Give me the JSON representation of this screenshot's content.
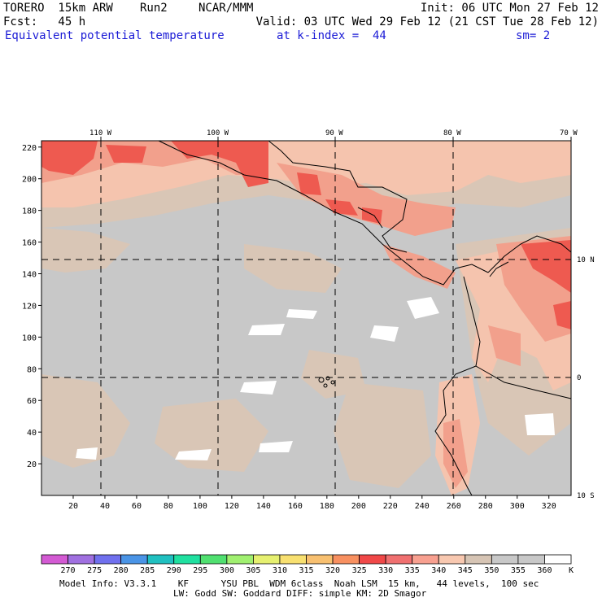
{
  "header": {
    "model": "TORERO  15km ARW",
    "run": "Run2",
    "org": "NCAR/MMM",
    "init": "Init: 06 UTC Mon 27 Feb 12",
    "fcst": "Fcst:   45 h",
    "valid": "Valid: 03 UTC Wed 29 Feb 12 (21 CST Tue 28 Feb 12)",
    "field": "Equivalent potential temperature",
    "level": "at k-index =  44",
    "smooth": "sm= 2"
  },
  "map": {
    "top_labels": [
      "110 W",
      "100 W",
      "90 W",
      "80 W",
      "70 W"
    ],
    "right_labels": [
      "10 N",
      "0",
      "10 S"
    ],
    "y_ticks": [
      "220",
      "200",
      "180",
      "160",
      "140",
      "120",
      "100",
      "80",
      "60",
      "40",
      "20"
    ],
    "x_ticks": [
      "20",
      "40",
      "60",
      "80",
      "100",
      "120",
      "140",
      "160",
      "180",
      "200",
      "220",
      "240",
      "260",
      "280",
      "300",
      "320"
    ],
    "grid": true
  },
  "legend": {
    "unit": "K",
    "labels": [
      "270",
      "275",
      "280",
      "285",
      "290",
      "295",
      "300",
      "305",
      "310",
      "315",
      "320",
      "325",
      "330",
      "335",
      "340",
      "345",
      "350",
      "355",
      "360"
    ],
    "colors": [
      "#d35ad3",
      "#a070e0",
      "#7070ee",
      "#4a94e6",
      "#20c0c0",
      "#20e0a0",
      "#50e070",
      "#a0f070",
      "#e6f070",
      "#f8e070",
      "#f8c070",
      "#f89060",
      "#f04848",
      "#f07070",
      "#f8a090",
      "#f8c8b0",
      "#d6c4b4",
      "#c8c8c8",
      "#c8c8c8",
      "#ffffff"
    ]
  },
  "footer": {
    "line1": "Model Info: V3.3.1    KF      YSU PBL  WDM 6class  Noah LSM  15 km,   44 levels,  100 sec",
    "line2": "LW: Godd SW: Goddard DIFF: simple KM: 2D Smagor"
  }
}
